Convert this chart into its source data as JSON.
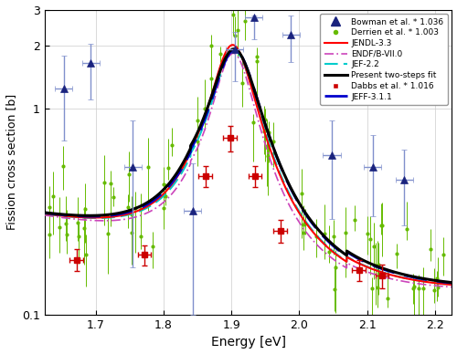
{
  "xlim": [
    1.625,
    2.225
  ],
  "ylim": [
    0.1,
    3.0
  ],
  "xlabel": "Energy [eV]",
  "ylabel": "Fission cross section [b]",
  "xticks": [
    1.7,
    1.8,
    1.9,
    2.0,
    2.1,
    2.2
  ],
  "yticks_major": [
    0.1,
    1.0,
    2.0,
    3.0
  ],
  "ytick_labels": [
    "0.1",
    "1",
    "2",
    "3"
  ],
  "bg_color": "#ffffff",
  "bowman_x": [
    1.653,
    1.693,
    1.755,
    1.843,
    1.905,
    1.933,
    1.988,
    2.048,
    2.108,
    2.155
  ],
  "bowman_y": [
    1.25,
    1.65,
    0.52,
    0.32,
    1.93,
    2.75,
    2.28,
    0.59,
    0.52,
    0.45
  ],
  "bowman_yerr_lo": [
    0.55,
    0.55,
    0.35,
    0.22,
    0.58,
    0.6,
    0.6,
    0.3,
    0.22,
    0.18
  ],
  "bowman_yerr_hi": [
    0.55,
    0.4,
    0.35,
    0.22,
    0.42,
    0.07,
    0.52,
    0.28,
    0.22,
    0.18
  ],
  "bowman_xerr": [
    0.013,
    0.013,
    0.013,
    0.013,
    0.013,
    0.013,
    0.013,
    0.013,
    0.013,
    0.013
  ],
  "dabbs_x": [
    1.672,
    1.772,
    1.862,
    1.898,
    1.935,
    1.972,
    2.088,
    2.122
  ],
  "dabbs_y": [
    0.185,
    0.195,
    0.47,
    0.72,
    0.47,
    0.255,
    0.165,
    0.155
  ],
  "dabbs_xerr": [
    0.01,
    0.01,
    0.01,
    0.01,
    0.01,
    0.01,
    0.01,
    0.01
  ],
  "dabbs_yerr": [
    0.022,
    0.022,
    0.055,
    0.1,
    0.055,
    0.032,
    0.02,
    0.02
  ],
  "bowman_color": "#1a237e",
  "bowman_err_color": "#8090cc",
  "derrien_color": "#66bb00",
  "dabbs_color": "#cc0000",
  "jendl_color": "#ff0000",
  "endf_color": "#cc44bb",
  "jef22_color": "#00cccc",
  "present_color": "#000000",
  "jeff311_color": "#0000cc",
  "figsize": [
    5.0,
    3.88
  ],
  "dpi": 100
}
